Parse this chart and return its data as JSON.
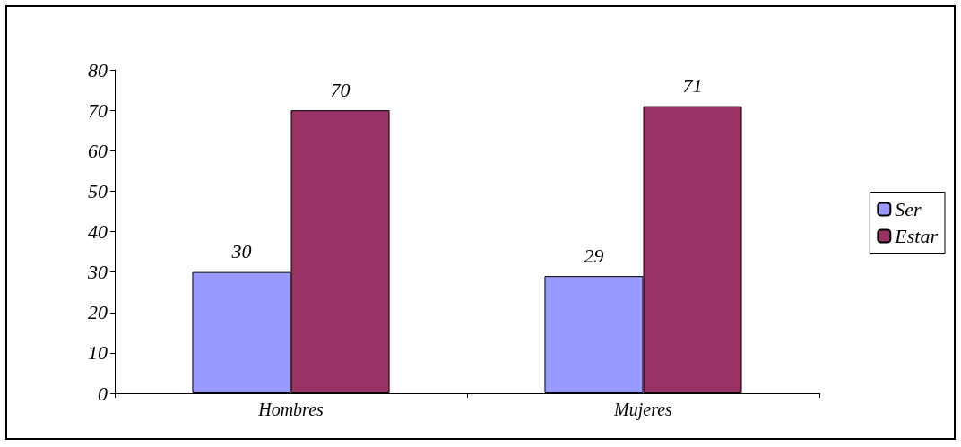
{
  "chart_data": {
    "type": "bar",
    "categories": [
      "Hombres",
      "Mujeres"
    ],
    "series": [
      {
        "name": "Ser",
        "color": "#9999ff",
        "values": [
          30,
          29
        ]
      },
      {
        "name": "Estar",
        "color": "#993366",
        "values": [
          70,
          71
        ]
      }
    ],
    "ylim": [
      0,
      80
    ],
    "yticks": [
      0,
      10,
      20,
      30,
      40,
      50,
      60,
      70,
      80
    ],
    "grid": false,
    "legend": "right",
    "data_labels": true
  }
}
